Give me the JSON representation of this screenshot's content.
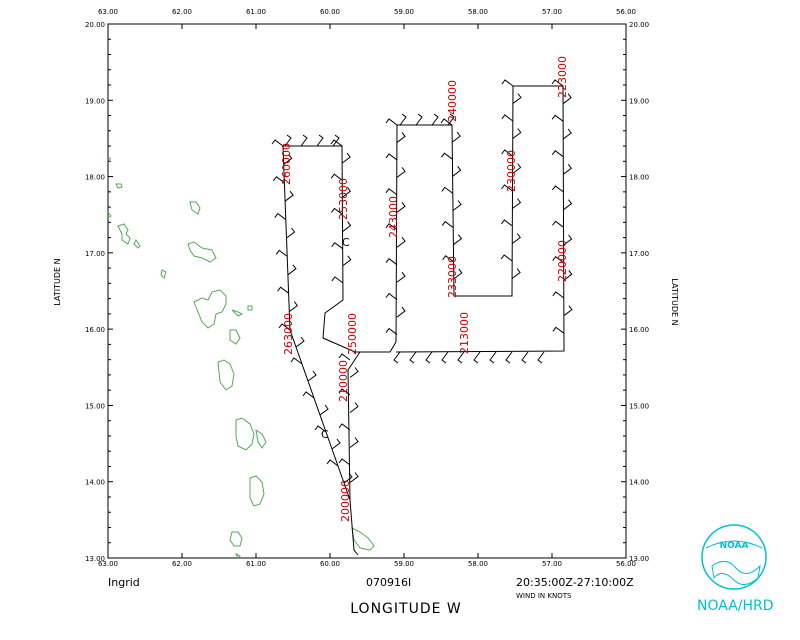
{
  "map": {
    "storm_name": "Ingrid",
    "flight_id": "070916I",
    "time_range": "20:35:00Z-27:10:00Z",
    "wind_units": "WIND IN KNOTS",
    "x_axis_title": "LONGITUDE    W",
    "y_axis_title_left": "LATITUDE    N",
    "y_axis_title_right": "LATITUDE    N",
    "lon_ticks": [
      "63.00",
      "62.00",
      "61.00",
      "60.00",
      "59.00",
      "58.00",
      "57.00",
      "56.00"
    ],
    "lat_ticks": [
      "20.00",
      "19.00",
      "18.00",
      "17.00",
      "16.00",
      "15.00",
      "14.00",
      "13.00"
    ],
    "time_labels": [
      "260000",
      "253000",
      "243000",
      "240000",
      "233000",
      "230000",
      "223000",
      "220000",
      "213000",
      "250000",
      "263000",
      "210000",
      "200000"
    ],
    "center_markers": [
      "C",
      "C"
    ],
    "colors": {
      "track": "#000000",
      "coast": "#55aa55",
      "time_labels": "#cc0000",
      "logo": "#00c0d0"
    }
  },
  "logo": {
    "org_label": "NOAA/HRD",
    "emblem_text": "NOAA"
  }
}
